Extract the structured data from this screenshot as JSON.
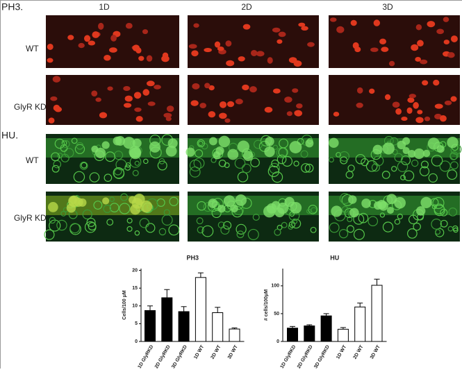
{
  "figure": {
    "ph3_label": "PH3.",
    "hu_label": "HU.",
    "columns": [
      "1D",
      "2D",
      "3D"
    ],
    "ph3_rows": [
      "WT",
      "GlyR KD"
    ],
    "hu_rows": [
      "WT",
      "GlyR KD"
    ]
  },
  "chart_data": [
    {
      "type": "bar",
      "title": "PH3",
      "y_label": "Cells/100 μM",
      "categories": [
        "1D GlyRKD",
        "2D GlyRKD",
        "3D GlyRKD",
        "1D WT",
        "2D WT",
        "3D WT"
      ],
      "values": [
        8.7,
        12.3,
        8.4,
        18,
        8.1,
        3.5
      ],
      "errors": [
        1.3,
        2.3,
        1.4,
        1.3,
        1.5,
        0.3
      ],
      "colors": [
        "#000000",
        "#000000",
        "#000000",
        "#ffffff",
        "#ffffff",
        "#ffffff"
      ],
      "ylim": [
        0,
        20.5
      ],
      "yticks": [
        0,
        5,
        10,
        15,
        20
      ]
    },
    {
      "type": "bar",
      "title": "HU",
      "y_label": "# cells/100μM",
      "categories": [
        "1D GlyRKD",
        "2D GlyRKD",
        "3D GlyRKD",
        "1D WT",
        "2D WT",
        "3D WT"
      ],
      "values": [
        24,
        28,
        46,
        22,
        62,
        101
      ],
      "errors": [
        3,
        2,
        4,
        3,
        7,
        11
      ],
      "colors": [
        "#000000",
        "#000000",
        "#000000",
        "#ffffff",
        "#ffffff",
        "#ffffff"
      ],
      "ylim": [
        0,
        131
      ],
      "yticks": [
        0,
        50,
        100
      ]
    }
  ]
}
